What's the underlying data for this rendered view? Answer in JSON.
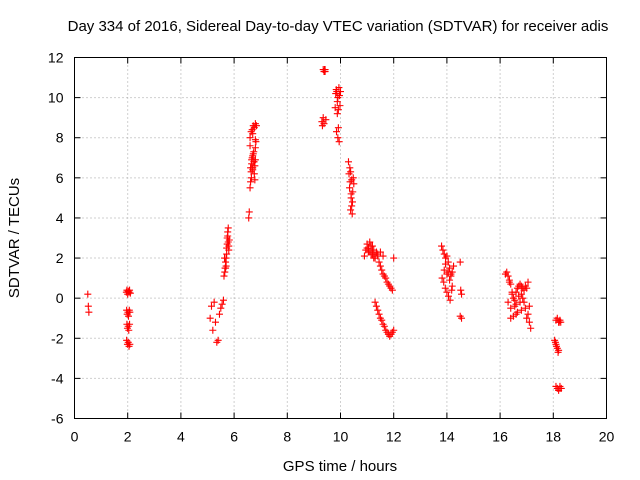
{
  "chart_data": {
    "type": "scatter",
    "title": "Day 334 of 2016, Sidereal Day-to-day VTEC variation (SDTVAR) for receiver adis",
    "xlabel": "GPS time / hours",
    "ylabel": "SDTVAR / TECUs",
    "xlim": [
      0,
      20
    ],
    "ylim": [
      -6,
      12
    ],
    "xticks": [
      0,
      2,
      4,
      6,
      8,
      10,
      12,
      14,
      16,
      18,
      20
    ],
    "yticks": [
      -6,
      -4,
      -2,
      0,
      2,
      4,
      6,
      8,
      10,
      12
    ],
    "grid": true,
    "marker": "+",
    "color": "#ff0000",
    "series": [
      {
        "name": "SDTVAR",
        "x": [
          0.5,
          0.52,
          0.54,
          1.95,
          1.97,
          2.0,
          2.02,
          2.05,
          2.07,
          2.1,
          1.96,
          1.98,
          2.01,
          2.03,
          2.06,
          2.08,
          1.97,
          1.99,
          2.02,
          2.04,
          2.07,
          1.96,
          1.99,
          2.02,
          2.05,
          2.08,
          5.1,
          5.15,
          5.2,
          5.25,
          5.3,
          5.35,
          5.4,
          5.45,
          5.5,
          5.55,
          5.6,
          5.65,
          5.7,
          5.72,
          5.74,
          5.76,
          5.78,
          5.8,
          5.82,
          5.66,
          5.68,
          5.7,
          5.72,
          5.74,
          5.76,
          5.78,
          5.8,
          5.62,
          5.64,
          5.68,
          6.55,
          6.57,
          6.6,
          6.62,
          6.64,
          6.66,
          6.68,
          6.7,
          6.72,
          6.74,
          6.76,
          6.78,
          6.8,
          6.82,
          6.6,
          6.64,
          6.68,
          6.72,
          6.76,
          6.8,
          6.62,
          6.66,
          6.7,
          6.74,
          6.78,
          6.65,
          6.7,
          6.75,
          6.8,
          6.84,
          6.6,
          6.7,
          6.8,
          9.3,
          9.32,
          9.35,
          9.38,
          9.4,
          9.42,
          9.35,
          9.38,
          9.42,
          9.45,
          9.8,
          9.82,
          9.84,
          9.86,
          9.88,
          9.9,
          9.92,
          9.94,
          9.96,
          9.98,
          10.0,
          9.85,
          9.9,
          9.95,
          9.88,
          9.92,
          10.3,
          10.32,
          10.34,
          10.36,
          10.38,
          10.4,
          10.42,
          10.44,
          10.46,
          10.48,
          10.5,
          10.35,
          10.4,
          10.45,
          10.38,
          10.42,
          10.9,
          10.95,
          11.0,
          11.05,
          11.1,
          11.15,
          11.2,
          11.25,
          11.3,
          11.35,
          11.4,
          11.45,
          11.5,
          11.55,
          11.6,
          11.65,
          11.7,
          11.75,
          11.8,
          11.85,
          11.9,
          11.95,
          12.0,
          11.0,
          11.1,
          11.2,
          11.3,
          11.05,
          11.15,
          11.25,
          11.4,
          11.5,
          11.6,
          11.3,
          11.35,
          11.4,
          11.45,
          11.5,
          11.55,
          11.6,
          11.65,
          11.7,
          11.75,
          11.8,
          11.85,
          11.9,
          11.95,
          12.0,
          13.8,
          13.85,
          13.9,
          13.95,
          14.0,
          14.05,
          14.1,
          14.15,
          14.2,
          14.25,
          13.82,
          13.88,
          13.94,
          14.0,
          14.06,
          14.12,
          14.18,
          13.9,
          14.0,
          14.1,
          14.2,
          13.95,
          14.05,
          14.15,
          14.5,
          14.52,
          14.55,
          14.5,
          14.55,
          16.2,
          16.25,
          16.3,
          16.35,
          16.4,
          16.45,
          16.5,
          16.55,
          16.6,
          16.65,
          16.7,
          16.75,
          16.8,
          16.85,
          16.9,
          16.95,
          17.0,
          17.05,
          17.1,
          17.15,
          16.3,
          16.4,
          16.5,
          16.6,
          16.7,
          16.8,
          16.9,
          17.0,
          17.1,
          16.35,
          16.45,
          16.55,
          16.65,
          16.75,
          16.85,
          16.95,
          17.05,
          16.4,
          16.6,
          16.8,
          18.05,
          18.08,
          18.1,
          18.12,
          18.15,
          18.18,
          18.2,
          18.22,
          18.25,
          18.28,
          18.1,
          18.15,
          18.2,
          18.25,
          18.1,
          18.15,
          18.2,
          18.25,
          18.3
        ],
        "y": [
          0.2,
          -0.4,
          -0.7,
          0.3,
          0.4,
          0.2,
          0.35,
          0.3,
          0.4,
          0.25,
          -0.6,
          -0.8,
          -0.7,
          -0.9,
          -0.6,
          -0.7,
          -1.3,
          -1.5,
          -1.4,
          -1.6,
          -1.3,
          -2.1,
          -2.3,
          -2.2,
          -2.4,
          -2.3,
          -1.0,
          -0.4,
          -1.6,
          -0.2,
          -1.2,
          -2.2,
          -2.1,
          -0.8,
          -0.5,
          -0.3,
          -0.1,
          1.3,
          1.6,
          2.2,
          2.7,
          3.1,
          3.5,
          2.4,
          2.9,
          1.5,
          1.8,
          2.0,
          2.5,
          3.0,
          3.3,
          2.8,
          2.6,
          1.1,
          2.0,
          1.5,
          4.0,
          4.3,
          5.5,
          5.8,
          6.3,
          6.7,
          7.0,
          6.5,
          7.2,
          6.8,
          6.2,
          5.9,
          7.5,
          7.8,
          8.0,
          8.3,
          8.4,
          8.6,
          8.5,
          8.7,
          6.5,
          6.9,
          7.1,
          7.3,
          6.6,
          6.0,
          6.4,
          6.8,
          7.9,
          8.6,
          7.6,
          8.2,
          6.9,
          8.8,
          8.6,
          9.0,
          8.7,
          11.4,
          11.3,
          11.4,
          11.3,
          11.4,
          8.9,
          9.5,
          10.2,
          10.4,
          10.3,
          9.8,
          10.0,
          9.4,
          10.5,
          10.1,
          9.6,
          10.3,
          8.3,
          8.0,
          7.8,
          9.2,
          8.5,
          6.8,
          6.2,
          5.5,
          5.8,
          6.3,
          5.0,
          4.6,
          4.2,
          5.3,
          6.0,
          5.7,
          6.5,
          5.2,
          4.8,
          4.4,
          5.9,
          2.1,
          2.4,
          2.7,
          2.5,
          2.3,
          2.6,
          2.2,
          2.4,
          2.0,
          2.3,
          2.1,
          1.8,
          1.6,
          1.4,
          1.2,
          1.1,
          1.0,
          0.8,
          0.7,
          0.6,
          0.5,
          0.4,
          2.0,
          2.5,
          2.8,
          2.6,
          2.1,
          2.3,
          2.2,
          2.0,
          2.2,
          2.3,
          2.1,
          -0.2,
          -0.4,
          -0.6,
          -0.8,
          -1.0,
          -1.1,
          -1.3,
          -1.4,
          -1.6,
          -1.7,
          -1.8,
          -1.9,
          -1.8,
          -1.7,
          -1.6,
          2.6,
          2.4,
          2.2,
          2.0,
          2.1,
          1.8,
          1.5,
          1.2,
          1.3,
          1.6,
          1.0,
          0.8,
          0.5,
          0.3,
          0.1,
          -0.1,
          0.4,
          1.4,
          1.2,
          0.9,
          0.6,
          1.7,
          1.3,
          1.1,
          1.8,
          0.4,
          0.2,
          -0.9,
          -1.0,
          1.2,
          1.3,
          1.1,
          0.9,
          0.7,
          0.2,
          0.0,
          -0.1,
          0.3,
          0.5,
          0.6,
          0.7,
          0.6,
          0.5,
          0.4,
          -0.5,
          -1.0,
          -0.8,
          -1.2,
          -1.5,
          -0.2,
          -0.5,
          -0.9,
          -0.3,
          0.1,
          -0.6,
          -0.2,
          0.5,
          -0.4,
          0.8,
          0.3,
          -0.4,
          -0.7,
          -0.2,
          0.0,
          0.6,
          0.8,
          -1.0,
          -0.8,
          0.2,
          -2.1,
          -2.2,
          -2.3,
          -2.4,
          -2.5,
          -2.7,
          -2.6,
          -1.2,
          -1.1,
          -1.2,
          -4.4,
          -4.5,
          -4.6,
          -4.5,
          -1.1,
          -1.0,
          -1.2,
          -4.4,
          -4.5
        ]
      }
    ]
  }
}
